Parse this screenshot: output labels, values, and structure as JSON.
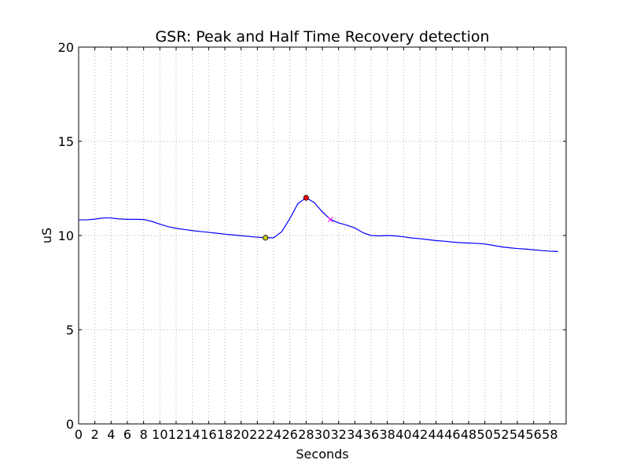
{
  "chart_data": {
    "type": "line",
    "title": "GSR: Peak and Half Time Recovery detection",
    "xlabel": "Seconds",
    "ylabel": "uS",
    "xlim": [
      0,
      60
    ],
    "ylim": [
      0,
      20
    ],
    "grid": true,
    "x_ticks": [
      0,
      2,
      4,
      6,
      8,
      10,
      12,
      14,
      16,
      18,
      20,
      22,
      24,
      26,
      28,
      30,
      32,
      34,
      36,
      38,
      40,
      42,
      44,
      46,
      48,
      50,
      52,
      54,
      56,
      58
    ],
    "x_tick_labels": [
      "0",
      "2",
      "4",
      "6",
      "8",
      "10",
      "12",
      "14",
      "16",
      "18",
      "20",
      "22",
      "24",
      "26",
      "28",
      "30",
      "32",
      "34",
      "36",
      "38",
      "40",
      "42",
      "44",
      "46",
      "48",
      "50",
      "52",
      "54",
      "56",
      "58"
    ],
    "y_ticks": [
      0,
      5,
      10,
      15,
      20
    ],
    "y_tick_labels": [
      "0",
      "5",
      "10",
      "15",
      "20"
    ],
    "series": [
      {
        "color": "#0000ff",
        "x": [
          0,
          1,
          2,
          3,
          4,
          5,
          6,
          7,
          8,
          9,
          10,
          11,
          12,
          13,
          14,
          15,
          16,
          17,
          18,
          19,
          20,
          21,
          22,
          23,
          24,
          25,
          26,
          27,
          28,
          29,
          30,
          31,
          32,
          33,
          34,
          35,
          36,
          37,
          38,
          39,
          40,
          41,
          42,
          43,
          44,
          45,
          46,
          47,
          48,
          49,
          50,
          51,
          52,
          53,
          54,
          55,
          56,
          57,
          58,
          59
        ],
        "y": [
          10.83,
          10.83,
          10.87,
          10.93,
          10.93,
          10.88,
          10.86,
          10.86,
          10.85,
          10.75,
          10.6,
          10.47,
          10.38,
          10.32,
          10.26,
          10.21,
          10.17,
          10.12,
          10.07,
          10.03,
          9.99,
          9.95,
          9.91,
          9.88,
          9.88,
          10.2,
          10.9,
          11.7,
          12.0,
          11.75,
          11.25,
          10.85,
          10.67,
          10.55,
          10.4,
          10.15,
          10.0,
          9.98,
          10.0,
          9.98,
          9.93,
          9.87,
          9.83,
          9.78,
          9.73,
          9.7,
          9.65,
          9.62,
          9.6,
          9.58,
          9.55,
          9.48,
          9.4,
          9.35,
          9.31,
          9.28,
          9.24,
          9.2,
          9.17,
          9.15
        ]
      }
    ],
    "markers": [
      {
        "x": 23,
        "y": 9.88,
        "shape": "circle",
        "color": "#c8c820"
      },
      {
        "x": 28,
        "y": 12.0,
        "shape": "circle",
        "color": "#ff0000"
      },
      {
        "x": 31,
        "y": 10.85,
        "shape": "x",
        "color": "#ff00ff"
      }
    ],
    "colors": {
      "background": "#ffffff",
      "grid": "#b0b0b0",
      "axes": "#000000",
      "line": "#0000ff"
    }
  }
}
